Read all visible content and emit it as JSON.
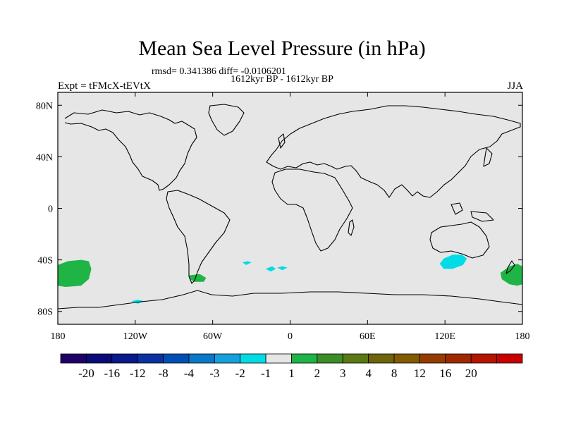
{
  "header": {
    "title": "Mean Sea Level Pressure (in hPa)",
    "stats": "rmsd= 0.341386 diff= -0.0106201",
    "subtitle": "1612kyr BP - 1612kyr BP",
    "experiment": "Expt = tFMcX-tEVtX",
    "season": "JJA"
  },
  "chart_data": {
    "type": "heatmap",
    "title": "Mean Sea Level Pressure (in hPa)",
    "projection": "cylindrical-equidistant",
    "lon_range": [
      -180,
      180
    ],
    "lat_range": [
      -90,
      90
    ],
    "x_ticks": [
      {
        "value": -180,
        "label": "180"
      },
      {
        "value": -120,
        "label": "120W"
      },
      {
        "value": -60,
        "label": "60W"
      },
      {
        "value": 0,
        "label": "0"
      },
      {
        "value": 60,
        "label": "60E"
      },
      {
        "value": 120,
        "label": "120E"
      },
      {
        "value": 180,
        "label": "180"
      }
    ],
    "y_ticks": [
      {
        "value": 80,
        "label": "80N"
      },
      {
        "value": 40,
        "label": "40N"
      },
      {
        "value": 0,
        "label": "0"
      },
      {
        "value": -40,
        "label": "40S"
      },
      {
        "value": -80,
        "label": "80S"
      }
    ],
    "background_color": "#e6e6e6",
    "colorbar": {
      "colors": [
        "#1e0066",
        "#0a0a78",
        "#0a1a8c",
        "#0a32a0",
        "#0050b4",
        "#0a78c8",
        "#14a0dc",
        "#00dce6",
        "#e6e6e6",
        "#1eb446",
        "#3c8c28",
        "#5a7814",
        "#6e640a",
        "#825a00",
        "#963c00",
        "#a02800",
        "#b41400",
        "#c80000"
      ],
      "labels": [
        "-20",
        "-16",
        "-12",
        "-8",
        "-4",
        "-3",
        "-2",
        "-1",
        "1",
        "2",
        "3",
        "4",
        "8",
        "12",
        "16",
        "20"
      ]
    },
    "anomaly_regions": [
      {
        "name": "south-pacific-west-positive",
        "value": 1.5,
        "color": "#1eb446",
        "points": [
          [
            -180,
            -44
          ],
          [
            -172,
            -41
          ],
          [
            -162,
            -40
          ],
          [
            -156,
            -41
          ],
          [
            -154,
            -47
          ],
          [
            -156,
            -55
          ],
          [
            -162,
            -60
          ],
          [
            -174,
            -61
          ],
          [
            -180,
            -60
          ]
        ]
      },
      {
        "name": "south-pacific-east-positive",
        "value": 1.5,
        "color": "#1eb446",
        "points": [
          [
            180,
            -45
          ],
          [
            176,
            -43
          ],
          [
            170,
            -45
          ],
          [
            163,
            -50
          ],
          [
            164,
            -55
          ],
          [
            170,
            -59
          ],
          [
            176,
            -60
          ],
          [
            180,
            -59
          ]
        ]
      },
      {
        "name": "drake-passage-positive",
        "value": 1.5,
        "color": "#1eb446",
        "points": [
          [
            -78,
            -52
          ],
          [
            -70,
            -51
          ],
          [
            -65,
            -54
          ],
          [
            -67,
            -57
          ],
          [
            -74,
            -57
          ],
          [
            -78,
            -55
          ]
        ]
      },
      {
        "name": "south-of-australia-negative",
        "value": -1.5,
        "color": "#00dce6",
        "points": [
          [
            116,
            -43
          ],
          [
            119,
            -39
          ],
          [
            126,
            -36
          ],
          [
            133,
            -36
          ],
          [
            137,
            -39
          ],
          [
            134,
            -44
          ],
          [
            126,
            -47
          ],
          [
            119,
            -47
          ]
        ]
      },
      {
        "name": "south-atlantic-negative-1",
        "value": -1.5,
        "color": "#00dce6",
        "points": [
          [
            -37,
            -42
          ],
          [
            -33,
            -41
          ],
          [
            -30,
            -42
          ],
          [
            -34,
            -44
          ]
        ]
      },
      {
        "name": "south-atlantic-negative-2",
        "value": -1.5,
        "color": "#00dce6",
        "points": [
          [
            -19,
            -47
          ],
          [
            -14,
            -45
          ],
          [
            -11,
            -47
          ],
          [
            -15,
            -49
          ]
        ]
      },
      {
        "name": "south-atlantic-negative-3",
        "value": -1.5,
        "color": "#00dce6",
        "points": [
          [
            -10,
            -46
          ],
          [
            -6,
            -45
          ],
          [
            -2,
            -46
          ],
          [
            -6,
            -48
          ]
        ]
      },
      {
        "name": "southern-ocean-negative",
        "value": -1.5,
        "color": "#00dce6",
        "points": [
          [
            -123,
            -72
          ],
          [
            -118,
            -71
          ],
          [
            -113,
            -72
          ],
          [
            -118,
            -74
          ]
        ]
      }
    ]
  }
}
